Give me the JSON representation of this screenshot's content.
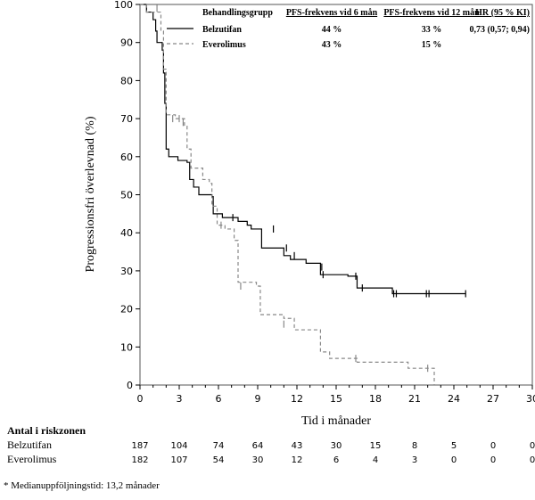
{
  "chart_data": {
    "type": "line",
    "subtype": "kaplan-meier",
    "xlabel": "Tid i månader",
    "ylabel": "Progressionsfri överlevnad (%)",
    "xlim": [
      0,
      30
    ],
    "ylim": [
      0,
      100
    ],
    "xticks": [
      0,
      3,
      6,
      9,
      12,
      15,
      18,
      21,
      24,
      27,
      30
    ],
    "yticks": [
      0,
      10,
      20,
      30,
      40,
      50,
      60,
      70,
      80,
      90,
      100
    ],
    "grid": false,
    "legend": {
      "placement": "top-right",
      "headers": [
        "Behandlingsgrupp",
        "PFS-frekvens vid 6 mån",
        "PFS-frekvens vid 12 mån",
        "HR (95 % KI)"
      ],
      "rows": [
        {
          "name": "Belzutifan",
          "pfs6": "44 %",
          "pfs12": "33 %",
          "hr": "0,73 (0,57; 0,94)"
        },
        {
          "name": "Everolimus",
          "pfs6": "43 %",
          "pfs12": "15 %",
          "hr": ""
        }
      ]
    },
    "series": [
      {
        "name": "Belzutifan",
        "style": "solid",
        "color": "#000000",
        "steps": [
          [
            0,
            100
          ],
          [
            0.5,
            98
          ],
          [
            1,
            96
          ],
          [
            1.2,
            93
          ],
          [
            1.3,
            90
          ],
          [
            1.7,
            88
          ],
          [
            1.8,
            82
          ],
          [
            1.9,
            74
          ],
          [
            2.0,
            62
          ],
          [
            2.2,
            60
          ],
          [
            2.9,
            59
          ],
          [
            3.6,
            58.5
          ],
          [
            3.8,
            54
          ],
          [
            4.1,
            52
          ],
          [
            4.5,
            50
          ],
          [
            5.5,
            49.5
          ],
          [
            5.6,
            45
          ],
          [
            6.3,
            44
          ],
          [
            7.5,
            43
          ],
          [
            8.2,
            42
          ],
          [
            8.5,
            41
          ],
          [
            9.3,
            36
          ],
          [
            10.5,
            36
          ],
          [
            11.0,
            34
          ],
          [
            11.5,
            33
          ],
          [
            12.7,
            32
          ],
          [
            13.8,
            29
          ],
          [
            15.9,
            28.6
          ],
          [
            16.6,
            25.5
          ],
          [
            19.3,
            24
          ],
          [
            24.9,
            24
          ]
        ],
        "censored": [
          [
            7.1,
            44
          ],
          [
            10.2,
            41
          ],
          [
            11.2,
            36
          ],
          [
            11.8,
            34
          ],
          [
            13.9,
            31
          ],
          [
            14.0,
            29
          ],
          [
            16.5,
            28.6
          ],
          [
            17.0,
            25.5
          ],
          [
            19.4,
            24
          ],
          [
            19.6,
            24
          ],
          [
            21.9,
            24
          ],
          [
            22.1,
            24
          ],
          [
            24.9,
            24
          ]
        ]
      },
      {
        "name": "Everolimus",
        "style": "dashed",
        "color": "#888888",
        "steps": [
          [
            0,
            100
          ],
          [
            0.5,
            98
          ],
          [
            1.6,
            93
          ],
          [
            1.8,
            83
          ],
          [
            2.0,
            71
          ],
          [
            2.7,
            70
          ],
          [
            3.4,
            68
          ],
          [
            3.6,
            62
          ],
          [
            3.9,
            57
          ],
          [
            4.8,
            54
          ],
          [
            5.3,
            53
          ],
          [
            5.5,
            47
          ],
          [
            5.9,
            42
          ],
          [
            6.5,
            41
          ],
          [
            7.2,
            38
          ],
          [
            7.5,
            27
          ],
          [
            8.9,
            26
          ],
          [
            9.2,
            18.5
          ],
          [
            11.0,
            17.5
          ],
          [
            11.8,
            14.5
          ],
          [
            13.6,
            14.5
          ],
          [
            13.8,
            8.7
          ],
          [
            14.5,
            7
          ],
          [
            16.6,
            6
          ],
          [
            20.5,
            4.4
          ],
          [
            22.5,
            4.4
          ],
          [
            22.5,
            0
          ]
        ],
        "censored": [
          [
            1.3,
            99
          ],
          [
            2.5,
            70
          ],
          [
            3.0,
            70
          ],
          [
            3.3,
            69
          ],
          [
            6.2,
            42
          ],
          [
            7.7,
            26
          ],
          [
            11.0,
            16
          ],
          [
            16.5,
            7
          ],
          [
            22.0,
            4.4
          ]
        ]
      }
    ],
    "risk_table": {
      "title": "Antal i riskzonen",
      "times": [
        0,
        3,
        6,
        9,
        12,
        15,
        18,
        21,
        24,
        27,
        30
      ],
      "rows": [
        {
          "name": "Belzutifan",
          "values": [
            187,
            104,
            74,
            64,
            43,
            30,
            15,
            8,
            5,
            0,
            0
          ]
        },
        {
          "name": "Everolimus",
          "values": [
            182,
            107,
            54,
            30,
            12,
            6,
            4,
            3,
            0,
            0,
            0
          ]
        }
      ]
    },
    "footnote": "* Medianuppföljningstid: 13,2 månader"
  }
}
